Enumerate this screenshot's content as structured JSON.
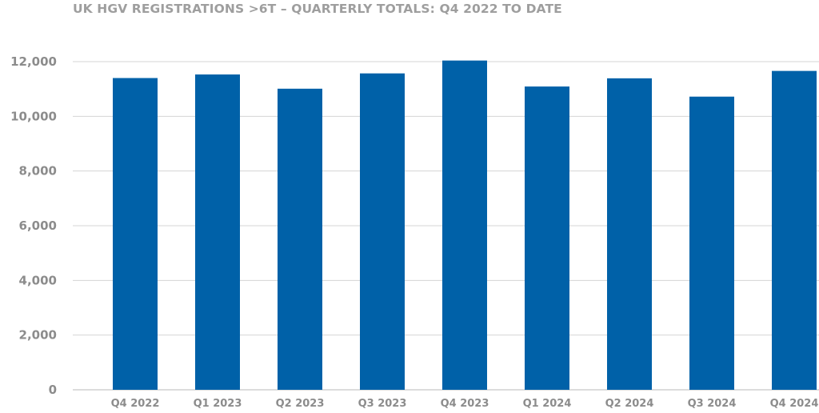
{
  "chart_data": {
    "type": "bar",
    "title": "UK HGV REGISTRATIONS >6T – QUARTERLY TOTALS: Q4 2022 TO DATE",
    "categories": [
      "Q4 2022",
      "Q1 2023",
      "Q2 2023",
      "Q3 2023",
      "Q4 2023",
      "Q1 2024",
      "Q2 2024",
      "Q3 2024",
      "Q4 2024"
    ],
    "values": [
      11400,
      11530,
      11010,
      11570,
      12040,
      11090,
      11390,
      10720,
      11660
    ],
    "ylim": [
      0,
      12000
    ],
    "yticks": [
      0,
      2000,
      4000,
      6000,
      8000,
      10000,
      12000
    ],
    "ytick_labels": [
      "0",
      "2,000",
      "4,000",
      "6,000",
      "8,000",
      "10,000",
      "12,000"
    ],
    "xlabel": "",
    "ylabel": "",
    "grid": true,
    "legend": "none",
    "bar_color": "#0061a8"
  }
}
